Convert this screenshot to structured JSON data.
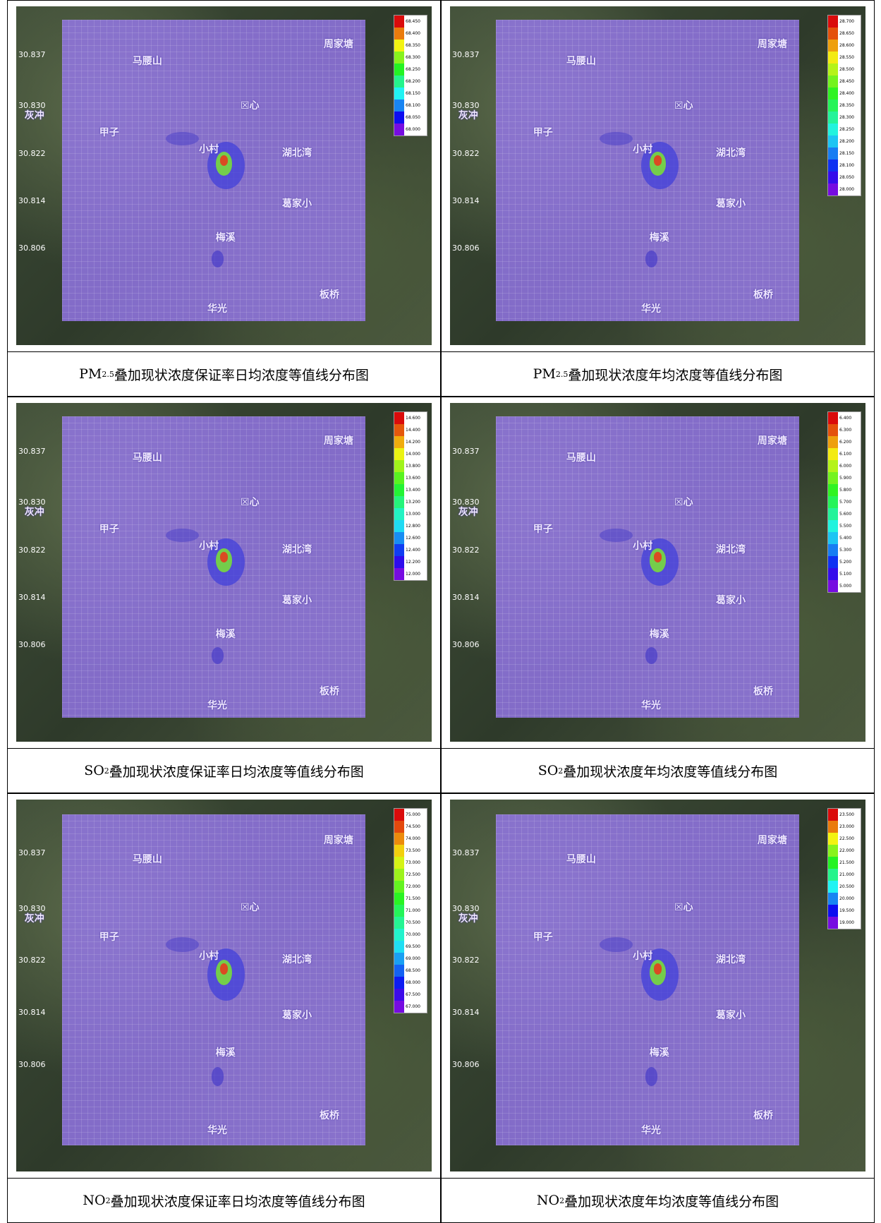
{
  "map_labels": {
    "places": [
      "马腰山",
      "周家塘",
      "灰冲",
      "甲子",
      "小村",
      "☒心",
      "湖北湾",
      "葛家小",
      "梅溪",
      "板桥",
      "华光"
    ],
    "lats": [
      "30.837",
      "30.830",
      "30.822",
      "30.814",
      "30.806"
    ]
  },
  "table": {
    "rows": [
      {
        "cells": [
          {
            "caption": {
              "pollutant": "PM",
              "subscript": "2.5",
              "text": "叠加现状浓度保证率日均浓度等值线分布图"
            },
            "legend": [
              "68.450",
              "68.400",
              "68.350",
              "68.300",
              "68.250",
              "68.200",
              "68.150",
              "68.100",
              "68.050",
              "68.000"
            ]
          },
          {
            "caption": {
              "pollutant": "PM",
              "subscript": "2.5",
              "text": "叠加现状浓度年均浓度等值线分布图"
            },
            "legend": [
              "28.700",
              "28.650",
              "28.600",
              "28.550",
              "28.500",
              "28.450",
              "28.400",
              "28.350",
              "28.300",
              "28.250",
              "28.200",
              "28.150",
              "28.100",
              "28.050",
              "28.000"
            ]
          }
        ]
      },
      {
        "cells": [
          {
            "caption": {
              "pollutant": "SO",
              "subscript": "2",
              "text": "叠加现状浓度保证率日均浓度等值线分布图"
            },
            "legend": [
              "14.600",
              "14.400",
              "14.200",
              "14.000",
              "13.800",
              "13.600",
              "13.400",
              "13.200",
              "13.000",
              "12.800",
              "12.600",
              "12.400",
              "12.200",
              "12.000"
            ]
          },
          {
            "caption": {
              "pollutant": "SO",
              "subscript": "2",
              "text": "叠加现状浓度年均浓度等值线分布图"
            },
            "legend": [
              "6.400",
              "6.300",
              "6.200",
              "6.100",
              "6.000",
              "5.900",
              "5.800",
              "5.700",
              "5.600",
              "5.500",
              "5.400",
              "5.300",
              "5.200",
              "5.100",
              "5.000"
            ]
          }
        ]
      },
      {
        "cells": [
          {
            "caption": {
              "pollutant": "NO",
              "subscript": "2",
              "text": "叠加现状浓度保证率日均浓度等值线分布图"
            },
            "legend": [
              "75.000",
              "74.500",
              "74.000",
              "73.500",
              "73.000",
              "72.500",
              "72.000",
              "71.500",
              "71.000",
              "70.500",
              "70.000",
              "69.500",
              "69.000",
              "68.500",
              "68.000",
              "67.500",
              "67.000"
            ]
          },
          {
            "caption": {
              "pollutant": "NO",
              "subscript": "2",
              "text": "叠加现状浓度年均浓度等值线分布图"
            },
            "legend": [
              "23.500",
              "23.000",
              "22.500",
              "22.000",
              "21.500",
              "21.000",
              "20.500",
              "20.000",
              "19.500",
              "19.000"
            ]
          }
        ]
      }
    ]
  }
}
